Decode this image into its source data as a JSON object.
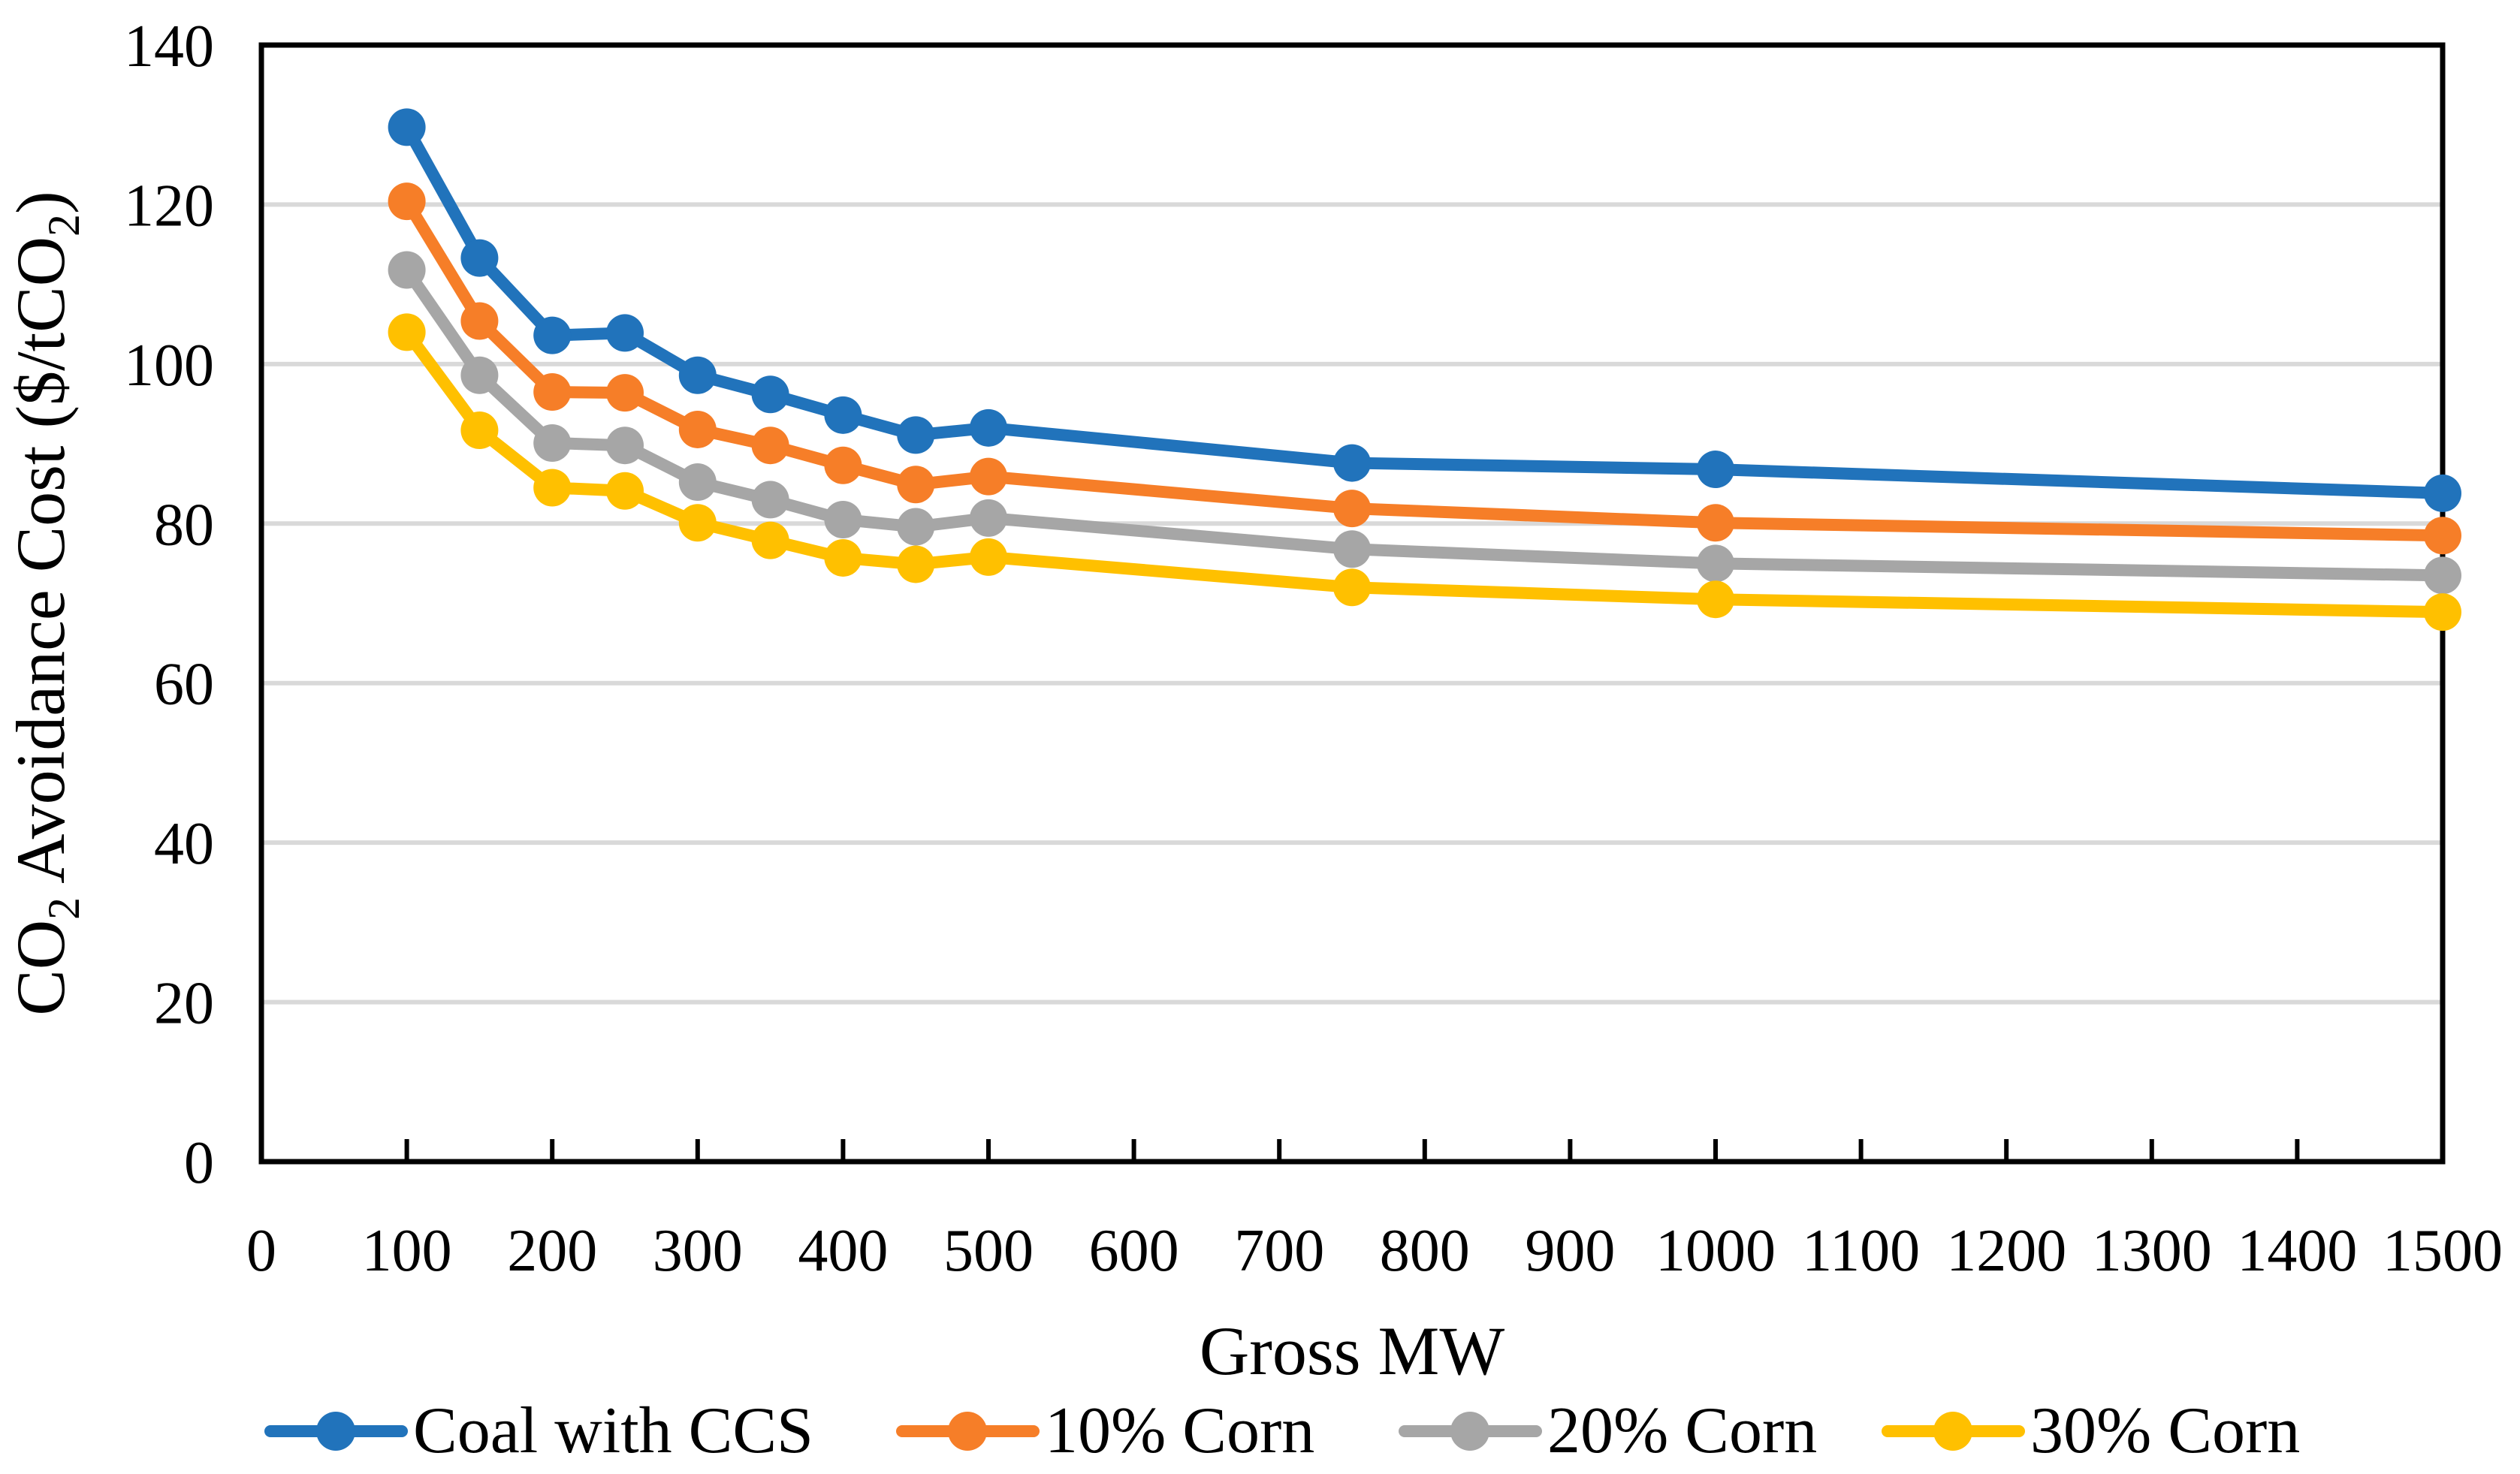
{
  "figure": {
    "background": "#FFFFFF",
    "axis_color": "#000000",
    "gridline_color": "#D9D9D9",
    "text_color": "#000000"
  },
  "chart_data": {
    "type": "line",
    "x": [
      100,
      150,
      200,
      250,
      300,
      350,
      400,
      450,
      500,
      750,
      1000,
      1500
    ],
    "series": [
      {
        "name": "Coal with CCS",
        "color": "#2173BB",
        "values": [
          129.7,
          113.3,
          103.6,
          103.9,
          98.6,
          96.2,
          93.6,
          91.1,
          92.0,
          87.6,
          86.8,
          83.8
        ]
      },
      {
        "name": "10% Corn",
        "color": "#F67E28",
        "values": [
          120.4,
          105.4,
          96.5,
          96.4,
          91.8,
          89.8,
          87.3,
          84.9,
          85.9,
          81.9,
          80.1,
          78.5
        ]
      },
      {
        "name": "20% Corn",
        "color": "#A6A6A6",
        "values": [
          111.8,
          98.6,
          90.1,
          89.8,
          85.2,
          83.0,
          80.5,
          79.6,
          80.7,
          76.8,
          75.0,
          73.5
        ]
      },
      {
        "name": "30% Corn",
        "color": "#FFC000",
        "values": [
          104.0,
          91.7,
          84.5,
          84.1,
          80.1,
          77.9,
          75.7,
          74.9,
          75.8,
          72.0,
          70.5,
          68.9
        ]
      }
    ],
    "xlabel": "Gross MW",
    "ylabel": "CO2 Avoidance Cost ($/tCO2)",
    "ylabel_parts": [
      {
        "t": "CO"
      },
      {
        "t": "2",
        "sub": true
      },
      {
        "t": " Avoidance Cost ($/tCO"
      },
      {
        "t": "2",
        "sub": true
      },
      {
        "t": ")"
      }
    ],
    "xlim": [
      0,
      1500
    ],
    "ylim": [
      0,
      140
    ],
    "x_ticks": [
      0,
      100,
      200,
      300,
      400,
      500,
      600,
      700,
      800,
      900,
      1000,
      1100,
      1200,
      1300,
      1400,
      1500
    ],
    "y_ticks": [
      0,
      20,
      40,
      60,
      80,
      100,
      120,
      140
    ],
    "grid": "horizontal",
    "legend_position": "bottom",
    "legend_labels": [
      "Coal with CCS",
      "10% Corn",
      "20% Corn",
      "30% Corn"
    ],
    "marker": "circle"
  }
}
